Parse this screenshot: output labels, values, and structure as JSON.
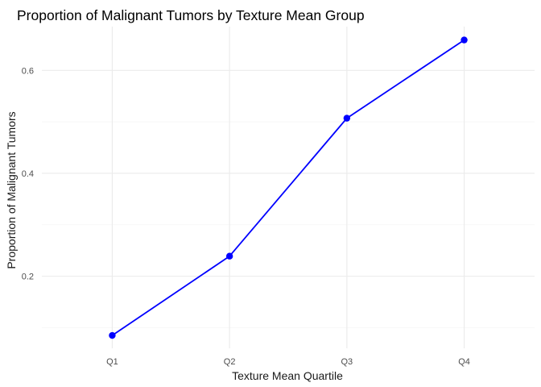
{
  "chart_data": {
    "type": "line",
    "title": "Proportion of Malignant Tumors by Texture Mean Group",
    "xlabel": "Texture Mean Quartile",
    "ylabel": "Proportion of Malignant Tumors",
    "categories": [
      "Q1",
      "Q2",
      "Q3",
      "Q4"
    ],
    "values": [
      0.085,
      0.239,
      0.507,
      0.659
    ],
    "y_ticks": [
      0.2,
      0.4,
      0.6
    ],
    "y_tick_labels": [
      "0.2",
      "0.4",
      "0.6"
    ],
    "ylim": [
      0.06,
      0.685
    ],
    "grid": true,
    "line_color": "#0000ff",
    "point_color": "#0000ff"
  }
}
